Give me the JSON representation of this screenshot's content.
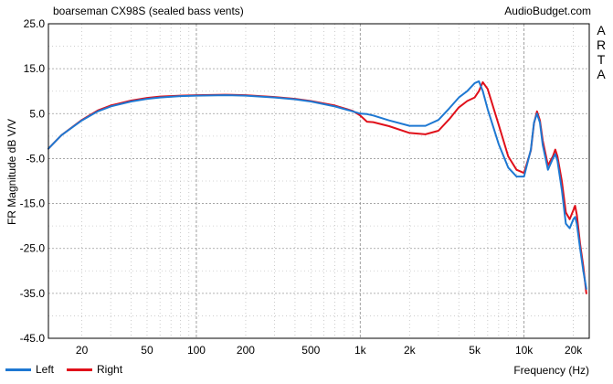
{
  "chart_data": {
    "type": "line",
    "title": "boarseman CX98S (sealed bass vents)",
    "site": "AudioBudget.com",
    "ylabel": "FR Magnitude dB V/V",
    "xlabel": "Frequency (Hz)",
    "side_label": "ARTA",
    "x_scale": "log",
    "xlim": [
      12.5,
      25000
    ],
    "ylim": [
      -45,
      25
    ],
    "y_ticks": [
      "25.0",
      "15.0",
      "5.0",
      "-5.0",
      "-15.0",
      "-25.0",
      "-35.0",
      "-45.0"
    ],
    "x_ticks": [
      {
        "value": 20,
        "label": "20"
      },
      {
        "value": 50,
        "label": "50"
      },
      {
        "value": 100,
        "label": "100"
      },
      {
        "value": 200,
        "label": "200"
      },
      {
        "value": 500,
        "label": "500"
      },
      {
        "value": 1000,
        "label": "1k"
      },
      {
        "value": 2000,
        "label": "2k"
      },
      {
        "value": 5000,
        "label": "5k"
      },
      {
        "value": 10000,
        "label": "10k"
      },
      {
        "value": 20000,
        "label": "20k"
      }
    ],
    "grid": true,
    "legend_position": "bottom-left",
    "series": [
      {
        "name": "Left",
        "color": "#1e78d2",
        "x": [
          12.5,
          15,
          20,
          25,
          30,
          40,
          50,
          60,
          80,
          100,
          150,
          200,
          300,
          400,
          500,
          700,
          900,
          1000,
          1100,
          1200,
          1500,
          2000,
          2500,
          3000,
          3500,
          4000,
          4500,
          5000,
          5300,
          5600,
          6000,
          7000,
          8000,
          9000,
          10000,
          11000,
          11500,
          12000,
          12500,
          13000,
          14000,
          15000,
          15500,
          16000,
          17000,
          18000,
          19000,
          20000,
          20500,
          21000,
          22000,
          23000,
          24000
        ],
        "y": [
          -2.8,
          0.2,
          3.5,
          5.5,
          6.6,
          7.7,
          8.3,
          8.6,
          8.9,
          9.0,
          9.1,
          9.0,
          8.6,
          8.2,
          7.7,
          6.6,
          5.5,
          5.0,
          4.9,
          4.6,
          3.5,
          2.3,
          2.3,
          3.6,
          6.2,
          8.6,
          10.0,
          11.8,
          12.2,
          10.0,
          6.0,
          -1.8,
          -7.0,
          -9.0,
          -9.0,
          -3.0,
          3.0,
          5.0,
          3.0,
          -2.0,
          -7.5,
          -5.0,
          -4.0,
          -5.5,
          -12.0,
          -19.5,
          -20.5,
          -18.5,
          -18.0,
          -19.5,
          -25.0,
          -30.0,
          -34.0
        ]
      },
      {
        "name": "Right",
        "color": "#e0101a",
        "x": [
          12.5,
          15,
          20,
          25,
          30,
          40,
          50,
          60,
          80,
          100,
          150,
          200,
          300,
          400,
          500,
          700,
          900,
          1000,
          1100,
          1200,
          1500,
          2000,
          2500,
          3000,
          3500,
          4000,
          4500,
          5000,
          5300,
          5600,
          6000,
          7000,
          8000,
          9000,
          10000,
          11000,
          11500,
          12000,
          12500,
          13000,
          14000,
          15000,
          15500,
          16000,
          17000,
          18000,
          19000,
          20000,
          20500,
          21000,
          22000,
          23000,
          24000
        ],
        "y": [
          -2.8,
          0.2,
          3.6,
          5.7,
          6.8,
          7.9,
          8.5,
          8.8,
          9.0,
          9.1,
          9.2,
          9.1,
          8.7,
          8.3,
          7.8,
          6.8,
          5.6,
          4.6,
          3.2,
          3.1,
          2.2,
          0.7,
          0.4,
          1.2,
          3.8,
          6.4,
          7.8,
          8.6,
          10.0,
          12.0,
          10.5,
          2.5,
          -4.5,
          -7.5,
          -8.2,
          -3.2,
          2.8,
          5.5,
          3.5,
          -1.0,
          -6.5,
          -4.5,
          -3.0,
          -4.5,
          -10.0,
          -17.0,
          -18.5,
          -16.5,
          -15.5,
          -17.5,
          -24.0,
          -29.0,
          -35.0
        ]
      }
    ]
  }
}
